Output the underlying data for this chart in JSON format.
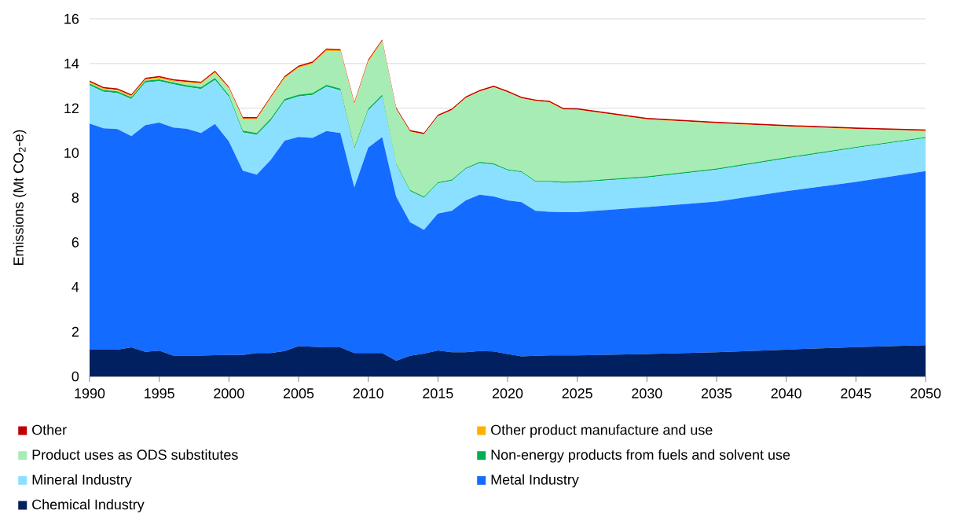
{
  "chart_data": {
    "type": "area",
    "stacked": true,
    "ylabel": "Emissions (Mt CO$_{2}$-e)",
    "x": [
      1990,
      1991,
      1992,
      1993,
      1994,
      1995,
      1996,
      1997,
      1998,
      1999,
      2000,
      2001,
      2002,
      2003,
      2004,
      2005,
      2006,
      2007,
      2008,
      2009,
      2010,
      2011,
      2012,
      2013,
      2014,
      2015,
      2016,
      2017,
      2018,
      2019,
      2020,
      2021,
      2022,
      2023,
      2024,
      2025,
      2030,
      2035,
      2040,
      2045,
      2050
    ],
    "xlim": [
      1990,
      2050
    ],
    "xticks": [
      1990,
      1995,
      2000,
      2005,
      2010,
      2015,
      2020,
      2025,
      2030,
      2035,
      2040,
      2045,
      2050
    ],
    "ylim": [
      0,
      16
    ],
    "yticks": [
      0,
      2,
      4,
      6,
      8,
      10,
      12,
      14,
      16
    ],
    "grid": "y",
    "legend": "bottom",
    "series": [
      {
        "name": "Chemical Industry",
        "color": "#002060",
        "values": [
          1.2,
          1.2,
          1.2,
          1.3,
          1.1,
          1.15,
          0.93,
          0.93,
          0.93,
          0.95,
          0.96,
          0.96,
          1.05,
          1.05,
          1.13,
          1.35,
          1.33,
          1.3,
          1.3,
          1.05,
          1.05,
          1.05,
          0.7,
          0.92,
          1.02,
          1.16,
          1.08,
          1.08,
          1.13,
          1.12,
          1.0,
          0.9,
          0.92,
          0.94,
          0.94,
          0.94,
          1.0,
          1.08,
          1.2,
          1.31,
          1.4
        ]
      },
      {
        "name": "Metal Industry",
        "color": "#146bff",
        "values": [
          10.11,
          9.9,
          9.87,
          9.45,
          10.14,
          10.21,
          10.21,
          10.15,
          9.96,
          10.35,
          9.55,
          8.24,
          7.98,
          8.64,
          9.42,
          9.37,
          9.34,
          9.68,
          9.59,
          7.41,
          9.19,
          9.66,
          7.35,
          5.98,
          5.54,
          6.13,
          6.33,
          6.8,
          7.0,
          6.93,
          6.88,
          6.9,
          6.49,
          6.43,
          6.41,
          6.41,
          6.58,
          6.74,
          7.09,
          7.39,
          7.79
        ]
      },
      {
        "name": "Mineral Industry",
        "color": "#8ce0ff",
        "values": [
          1.72,
          1.64,
          1.61,
          1.66,
          1.91,
          1.85,
          1.93,
          1.87,
          1.97,
          1.97,
          2.0,
          1.72,
          1.78,
          1.76,
          1.78,
          1.81,
          1.93,
          1.99,
          1.91,
          1.7,
          1.66,
          1.82,
          1.43,
          1.39,
          1.43,
          1.35,
          1.35,
          1.4,
          1.42,
          1.43,
          1.34,
          1.33,
          1.29,
          1.33,
          1.31,
          1.33,
          1.32,
          1.43,
          1.46,
          1.52,
          1.47
        ]
      },
      {
        "name": "Non-energy products from fuels and solvent use",
        "color": "#00b050",
        "values": [
          0.08,
          0.08,
          0.08,
          0.08,
          0.08,
          0.08,
          0.08,
          0.08,
          0.08,
          0.08,
          0.08,
          0.08,
          0.08,
          0.08,
          0.08,
          0.08,
          0.08,
          0.08,
          0.08,
          0.08,
          0.08,
          0.08,
          0.05,
          0.05,
          0.05,
          0.05,
          0.05,
          0.05,
          0.05,
          0.05,
          0.05,
          0.05,
          0.05,
          0.05,
          0.05,
          0.05,
          0.05,
          0.05,
          0.05,
          0.05,
          0.05
        ]
      },
      {
        "name": "Product uses as ODS substitutes",
        "color": "#a6ecb4",
        "values": [
          0.02,
          0.02,
          0.02,
          0.02,
          0.02,
          0.04,
          0.04,
          0.1,
          0.14,
          0.22,
          0.27,
          0.49,
          0.6,
          0.9,
          0.92,
          1.19,
          1.3,
          1.51,
          1.66,
          1.92,
          2.09,
          2.36,
          2.43,
          2.6,
          2.78,
          2.94,
          3.09,
          3.12,
          3.14,
          3.4,
          3.43,
          3.25,
          3.56,
          3.5,
          3.22,
          3.19,
          2.54,
          2.01,
          1.37,
          0.79,
          0.26
        ]
      },
      {
        "name": "Other product manufacture and use",
        "color": "#ffb000",
        "values": [
          0.05,
          0.05,
          0.05,
          0.05,
          0.05,
          0.05,
          0.05,
          0.05,
          0.05,
          0.05,
          0.05,
          0.05,
          0.05,
          0.05,
          0.05,
          0.05,
          0.05,
          0.05,
          0.05,
          0.05,
          0.05,
          0.05,
          0.02,
          0.02,
          0.02,
          0.02,
          0.02,
          0.02,
          0.02,
          0.02,
          0.02,
          0.02,
          0.02,
          0.02,
          0.02,
          0.02,
          0.02,
          0.02,
          0.02,
          0.02,
          0.02
        ]
      },
      {
        "name": "Other",
        "color": "#c00000",
        "values": [
          0.06,
          0.06,
          0.06,
          0.06,
          0.06,
          0.06,
          0.06,
          0.06,
          0.06,
          0.06,
          0.06,
          0.06,
          0.06,
          0.06,
          0.06,
          0.06,
          0.06,
          0.06,
          0.06,
          0.06,
          0.06,
          0.06,
          0.06,
          0.06,
          0.06,
          0.06,
          0.06,
          0.06,
          0.06,
          0.06,
          0.06,
          0.06,
          0.06,
          0.06,
          0.06,
          0.06,
          0.06,
          0.06,
          0.06,
          0.06,
          0.06
        ]
      }
    ]
  }
}
